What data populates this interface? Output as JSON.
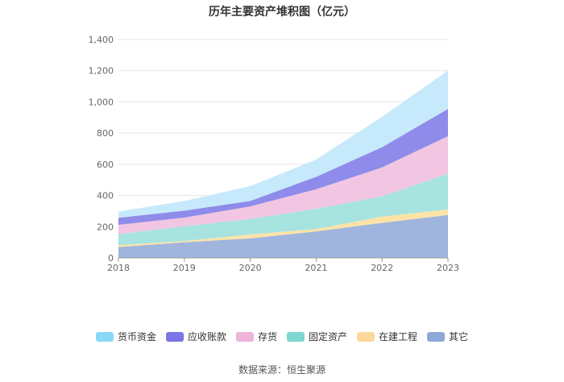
{
  "chart_data": {
    "type": "area",
    "stacked": true,
    "title": "历年主要资产堆积图（亿元）",
    "xlabel": "",
    "ylabel": "",
    "x": [
      "2018",
      "2019",
      "2020",
      "2021",
      "2022",
      "2023"
    ],
    "ylim": [
      0,
      1400
    ],
    "yticks": [
      0,
      200,
      400,
      600,
      800,
      1000,
      1200,
      1400
    ],
    "ytick_labels": [
      "0",
      "200",
      "400",
      "600",
      "800",
      "1,000",
      "1,200",
      "1,400"
    ],
    "grid": true,
    "legend_position": "bottom",
    "series": [
      {
        "name": "其它",
        "color": "#9fb5dd",
        "values": [
          70,
          100,
          125,
          170,
          225,
          275
        ]
      },
      {
        "name": "在建工程",
        "color": "#fde3a7",
        "values": [
          12,
          8,
          25,
          15,
          40,
          35
        ]
      },
      {
        "name": "固定资产",
        "color": "#a7e3df",
        "values": [
          70,
          95,
          100,
          130,
          130,
          230
        ]
      },
      {
        "name": "存货",
        "color": "#f2c6e2",
        "values": [
          60,
          55,
          80,
          125,
          185,
          240
        ]
      },
      {
        "name": "应收账款",
        "color": "#8f8bea",
        "values": [
          45,
          45,
          35,
          80,
          130,
          175
        ]
      },
      {
        "name": "货币资金",
        "color": "#c6e9fb",
        "values": [
          40,
          62,
          95,
          110,
          195,
          245
        ]
      }
    ]
  },
  "legend": {
    "items": [
      {
        "label": "货币资金",
        "color": "#8ad8f7"
      },
      {
        "label": "应收账款",
        "color": "#7b75e8"
      },
      {
        "label": "存货",
        "color": "#ecb5d9"
      },
      {
        "label": "固定资产",
        "color": "#7dd6d0"
      },
      {
        "label": "在建工程",
        "color": "#fcd99a"
      },
      {
        "label": "其它",
        "color": "#8fa8d8"
      }
    ]
  },
  "source": "数据来源：恒生聚源"
}
